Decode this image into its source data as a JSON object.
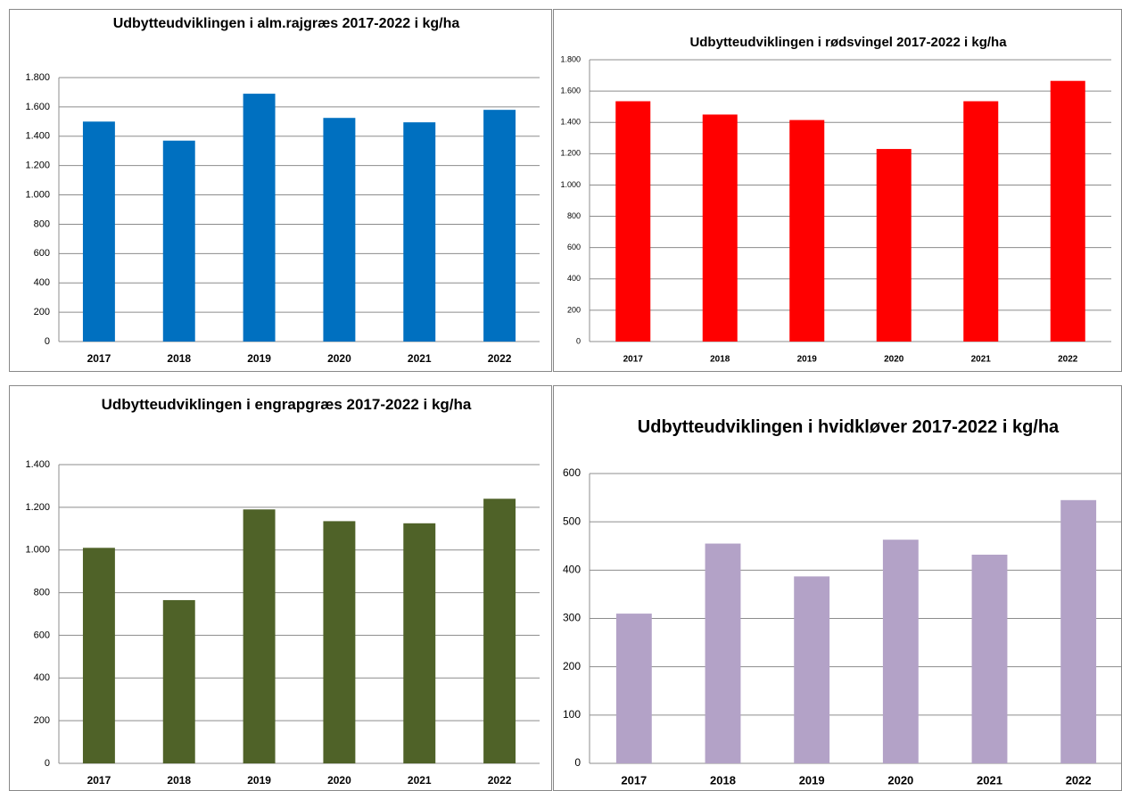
{
  "chart_data": [
    {
      "type": "bar",
      "title": "Udbytteudviklingen i alm.rajgræs 2017-2022 i kg/ha",
      "categories": [
        "2017",
        "2018",
        "2019",
        "2020",
        "2021",
        "2022"
      ],
      "values": [
        1500,
        1370,
        1690,
        1525,
        1495,
        1580
      ],
      "color": "#0070c0",
      "ylim": [
        0,
        1800
      ],
      "yticks": [
        0,
        200,
        400,
        600,
        800,
        {
          "value": 1000,
          "label": "1.000"
        },
        {
          "value": 1200,
          "label": "1.200"
        },
        {
          "value": 1400,
          "label": "1.400"
        },
        {
          "value": 1600,
          "label": "1.600"
        },
        {
          "value": 1800,
          "label": "1.800"
        }
      ],
      "grid": true
    },
    {
      "type": "bar",
      "title": "Udbytteudviklingen i rødsvingel 2017-2022 i kg/ha",
      "categories": [
        "2017",
        "2018",
        "2019",
        "2020",
        "2021",
        "2022"
      ],
      "values": [
        1535,
        1450,
        1415,
        1230,
        1535,
        1665
      ],
      "color": "#ff0000",
      "ylim": [
        0,
        1800
      ],
      "yticks": [
        0,
        200,
        400,
        600,
        800,
        {
          "value": 1000,
          "label": "1.000"
        },
        {
          "value": 1200,
          "label": "1.200"
        },
        {
          "value": 1400,
          "label": "1.400"
        },
        {
          "value": 1600,
          "label": "1.600"
        },
        {
          "value": 1800,
          "label": "1.800"
        }
      ],
      "grid": true
    },
    {
      "type": "bar",
      "title": "Udbytteudviklingen i engrapgræs 2017-2022 i kg/ha",
      "categories": [
        "2017",
        "2018",
        "2019",
        "2020",
        "2021",
        "2022"
      ],
      "values": [
        1010,
        765,
        1190,
        1135,
        1125,
        1240
      ],
      "color": "#4f6228",
      "ylim": [
        0,
        1400
      ],
      "yticks": [
        0,
        200,
        400,
        600,
        800,
        {
          "value": 1000,
          "label": "1.000"
        },
        {
          "value": 1200,
          "label": "1.200"
        },
        {
          "value": 1400,
          "label": "1.400"
        }
      ],
      "grid": true
    },
    {
      "type": "bar",
      "title": "Udbytteudviklingen i hvidkløver 2017-2022 i kg/ha",
      "categories": [
        "2017",
        "2018",
        "2019",
        "2020",
        "2021",
        "2022"
      ],
      "values": [
        310,
        455,
        387,
        463,
        432,
        545
      ],
      "color": "#b3a2c7",
      "ylim": [
        0,
        600
      ],
      "yticks": [
        0,
        100,
        200,
        300,
        400,
        500,
        600
      ],
      "grid": true
    }
  ]
}
